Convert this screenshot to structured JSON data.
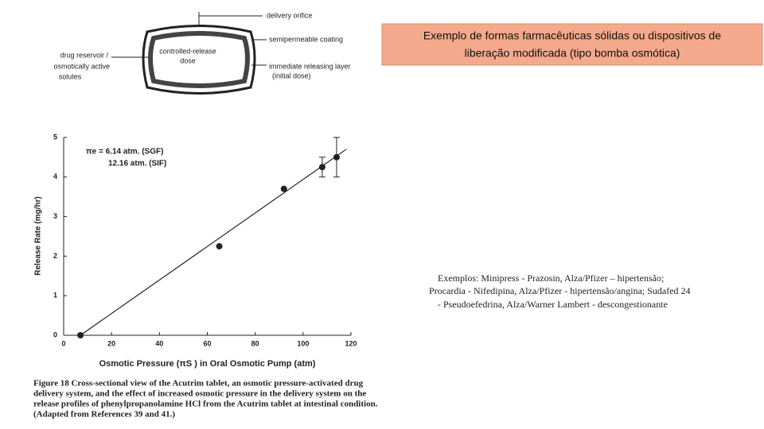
{
  "title": [
    "Exemplo de formas farmacêuticas sólidas ou dispositivos de",
    "liberação modificada (tipo bomba osmótica)"
  ],
  "diagram": {
    "labels": [
      "delivery orifice",
      "semipermeable coating",
      "controlled-release",
      "dose",
      "immediate releasing layer",
      "(initial dose)",
      "drug reservoir /",
      "osmotically active",
      "solutes"
    ]
  },
  "chart_data": {
    "type": "scatter",
    "x_label": "Osmotic Pressure (πS ) in Oral Osmotic Pump (atm)",
    "y_label": "Release Rate (mg/hr)",
    "annotations": [
      "πe = 6.14 atm. (SGF)",
      "12.16 atm. (SIF)"
    ],
    "x": [
      7,
      65,
      92,
      108,
      114
    ],
    "values": [
      0,
      2.25,
      3.7,
      4.25,
      4.5
    ],
    "errors": [
      null,
      null,
      null,
      0.25,
      0.5
    ],
    "fit_line": {
      "x": [
        7,
        118
      ],
      "y": [
        0,
        4.7
      ]
    },
    "xlim": [
      0,
      120
    ],
    "xticks": [
      0,
      20,
      40,
      60,
      80,
      100,
      120
    ],
    "ylim": [
      0,
      5
    ],
    "yticks": [
      0,
      1,
      2,
      3,
      4,
      5
    ],
    "color": "#222222"
  },
  "caption": [
    "Figure 18   Cross-sectional view of the Acutrim tablet, an osmotic pressure-activated drug",
    "delivery system, and the effect of increased osmotic pressure in the delivery system on the",
    "release profiles of phenylpropanolamine HCl from the Acutrim tablet at intestinal condition.",
    "(Adapted from References 39 and 41.)"
  ],
  "examples": [
    "Exemplos: Minipress - Prazosin, Alza/Pfizer – hipertensão;",
    "Procardia - Nifedipina, Alza/Pfizer - hipertensão/angina; Sudafed 24",
    "- Pseudoefedrina, Alza/Warner Lambert - descongestionante"
  ]
}
